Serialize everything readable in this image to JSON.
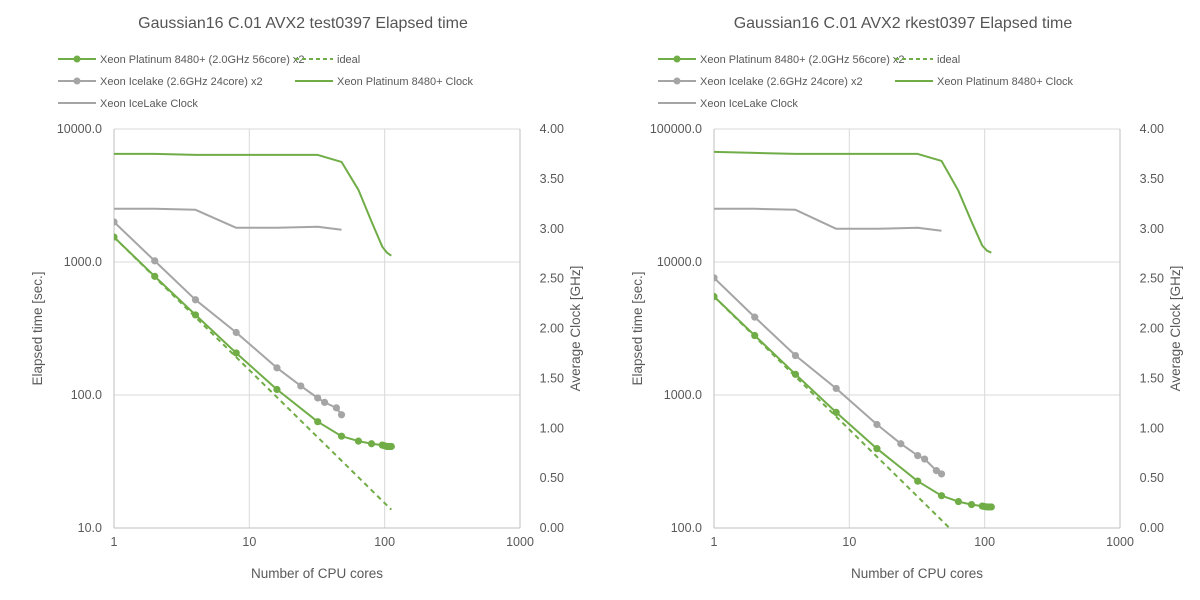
{
  "chart_data": [
    {
      "type": "line",
      "title": "Gaussian16 C.01 AVX2 test0397 Elapsed time",
      "xlabel": "Number of CPU cores",
      "ylabel": "Elapsed time [sec.]",
      "y2label": "Average Clock [GHz]",
      "xscale": "log",
      "yscale": "log",
      "xlim": [
        1,
        1000
      ],
      "ylim": [
        10,
        10000
      ],
      "y2lim": [
        0,
        4
      ],
      "x_ticks": [
        "1",
        "10",
        "100",
        "1000"
      ],
      "y_ticks": [
        "10.0",
        "100.0",
        "1000.0",
        "10000.0"
      ],
      "y2_ticks": [
        "0.00",
        "0.50",
        "1.00",
        "1.50",
        "2.00",
        "2.50",
        "3.00",
        "3.50",
        "4.00"
      ],
      "grid": true,
      "legend_position": "top",
      "series": [
        {
          "name": "Xeon Platinum 8480+ (2.0GHz 56core) x2",
          "axis": "y",
          "color": "#70ad47",
          "style": "solid-markers",
          "x": [
            1,
            2,
            4,
            8,
            16,
            32,
            48,
            64,
            80,
            96,
            100,
            104,
            108,
            112
          ],
          "y": [
            1540,
            780,
            400,
            207,
            110,
            63,
            49,
            45,
            43,
            42,
            41.5,
            41,
            41,
            41
          ]
        },
        {
          "name": "ideal",
          "axis": "y",
          "color": "#70ad47",
          "style": "dashed",
          "x": [
            1,
            112
          ],
          "y": [
            1540,
            13.75
          ]
        },
        {
          "name": "Xeon Icelake (2.6GHz 24core) x2",
          "axis": "y",
          "color": "#a5a5a5",
          "style": "solid-markers",
          "x": [
            1,
            2,
            4,
            8,
            16,
            24,
            32,
            36,
            44,
            48
          ],
          "y": [
            2000,
            1020,
            520,
            295,
            160,
            117,
            95,
            88,
            80,
            71
          ]
        },
        {
          "name": "Xeon Platinum 8480+ Clock",
          "axis": "y2",
          "color": "#70ad47",
          "style": "solid",
          "x": [
            1,
            2,
            4,
            8,
            16,
            32,
            48,
            64,
            80,
            96,
            104,
            112
          ],
          "y": [
            3.75,
            3.75,
            3.74,
            3.74,
            3.74,
            3.74,
            3.67,
            3.39,
            3.07,
            2.82,
            2.76,
            2.73
          ]
        },
        {
          "name": "Xeon IceLake Clock",
          "axis": "y2",
          "color": "#a5a5a5",
          "style": "solid",
          "x": [
            1,
            2,
            4,
            8,
            16,
            32,
            48
          ],
          "y": [
            3.2,
            3.2,
            3.19,
            3.01,
            3.01,
            3.02,
            2.99
          ]
        }
      ]
    },
    {
      "type": "line",
      "title": "Gaussian16 C.01 AVX2 rkest0397 Elapsed time",
      "xlabel": "Number of CPU cores",
      "ylabel": "Elapsed time [sec.]",
      "y2label": "Average Clock [GHz]",
      "xscale": "log",
      "yscale": "log",
      "xlim": [
        1,
        1000
      ],
      "ylim": [
        100,
        100000
      ],
      "y2lim": [
        0,
        4
      ],
      "x_ticks": [
        "1",
        "10",
        "100",
        "1000"
      ],
      "y_ticks": [
        "100.0",
        "1000.0",
        "10000.0",
        "100000.0"
      ],
      "y2_ticks": [
        "0.00",
        "0.50",
        "1.00",
        "1.50",
        "2.00",
        "2.50",
        "3.00",
        "3.50",
        "4.00"
      ],
      "grid": true,
      "legend_position": "top",
      "series": [
        {
          "name": "Xeon Platinum 8480+ (2.0GHz 56core) x2",
          "axis": "y",
          "color": "#70ad47",
          "style": "solid-markers",
          "x": [
            1,
            2,
            4,
            8,
            16,
            32,
            48,
            64,
            80,
            96,
            100,
            104,
            108,
            112
          ],
          "y": [
            5500,
            2800,
            1430,
            740,
            395,
            225,
            175,
            158,
            150,
            146,
            145,
            144,
            144,
            144
          ]
        },
        {
          "name": "ideal",
          "axis": "y",
          "color": "#70ad47",
          "style": "dashed",
          "x": [
            1,
            55
          ],
          "y": [
            5500,
            100
          ]
        },
        {
          "name": "Xeon Icelake (2.6GHz 24core) x2",
          "axis": "y",
          "color": "#a5a5a5",
          "style": "solid-markers",
          "x": [
            1,
            2,
            4,
            8,
            16,
            24,
            32,
            36,
            44,
            48
          ],
          "y": [
            7600,
            3850,
            1980,
            1120,
            600,
            430,
            350,
            330,
            270,
            255
          ]
        },
        {
          "name": "Xeon Platinum 8480+ Clock",
          "axis": "y2",
          "color": "#70ad47",
          "style": "solid",
          "x": [
            1,
            2,
            4,
            8,
            16,
            32,
            48,
            64,
            80,
            96,
            104,
            112
          ],
          "y": [
            3.77,
            3.76,
            3.75,
            3.75,
            3.75,
            3.75,
            3.68,
            3.38,
            3.07,
            2.83,
            2.78,
            2.76
          ]
        },
        {
          "name": "Xeon IceLake Clock",
          "axis": "y2",
          "color": "#a5a5a5",
          "style": "solid",
          "x": [
            1,
            2,
            4,
            8,
            16,
            32,
            48
          ],
          "y": [
            3.2,
            3.2,
            3.19,
            3.0,
            3.0,
            3.01,
            2.98
          ]
        }
      ]
    }
  ]
}
